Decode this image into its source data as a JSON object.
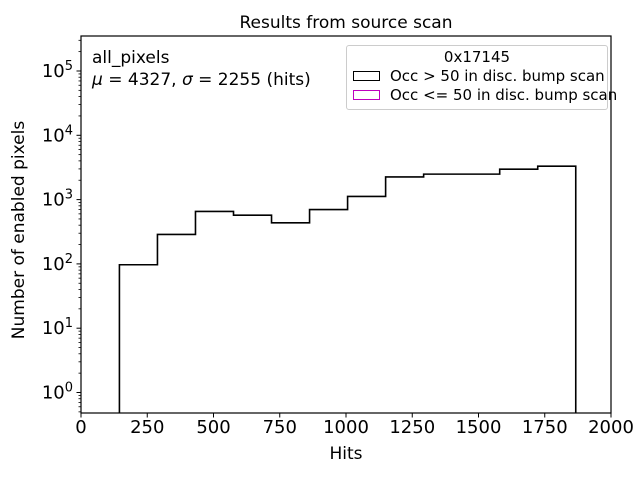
{
  "chart_data": {
    "type": "bar",
    "subtype": "step-histogram",
    "title": "Results from source scan",
    "xlabel": "Hits",
    "ylabel": "Number of enabled pixels",
    "xlim": [
      0,
      2000
    ],
    "ylim": [
      0.48,
      350000
    ],
    "yscale": "log",
    "grid": false,
    "xticks": [
      0,
      250,
      500,
      750,
      1000,
      1250,
      1500,
      1750,
      2000
    ],
    "ytick_exponents": [
      0,
      1,
      2,
      3,
      4,
      5
    ],
    "legend_position": "upper right",
    "series": [
      {
        "name": "Occ > 50 in disc. bump scan",
        "color": "#000000",
        "bin_edges": [
          145,
          288.5,
          432,
          575.5,
          719,
          862.5,
          1006,
          1149.5,
          1293,
          1436.5,
          1580,
          1723.5,
          1867
        ],
        "counts": [
          97,
          287,
          655,
          572,
          435,
          700,
          1120,
          2250,
          2490,
          2490,
          2970,
          3310
        ]
      },
      {
        "name": "Occ <= 50 in disc. bump scan",
        "color": "#bf00bf",
        "bin_edges": [],
        "counts": []
      }
    ]
  },
  "annotation": {
    "line1": "all_pixels",
    "mu_symbol": "μ",
    "mu_rest": " = 4327, ",
    "sigma_symbol": "σ",
    "sigma_rest": " = 2255 (hits)"
  },
  "legend": {
    "title": "0x17145",
    "entries": [
      {
        "label": "Occ > 50 in disc. bump scan",
        "color": "#000000"
      },
      {
        "label": "Occ <= 50 in disc. bump scan",
        "color": "#bf00bf"
      }
    ]
  }
}
